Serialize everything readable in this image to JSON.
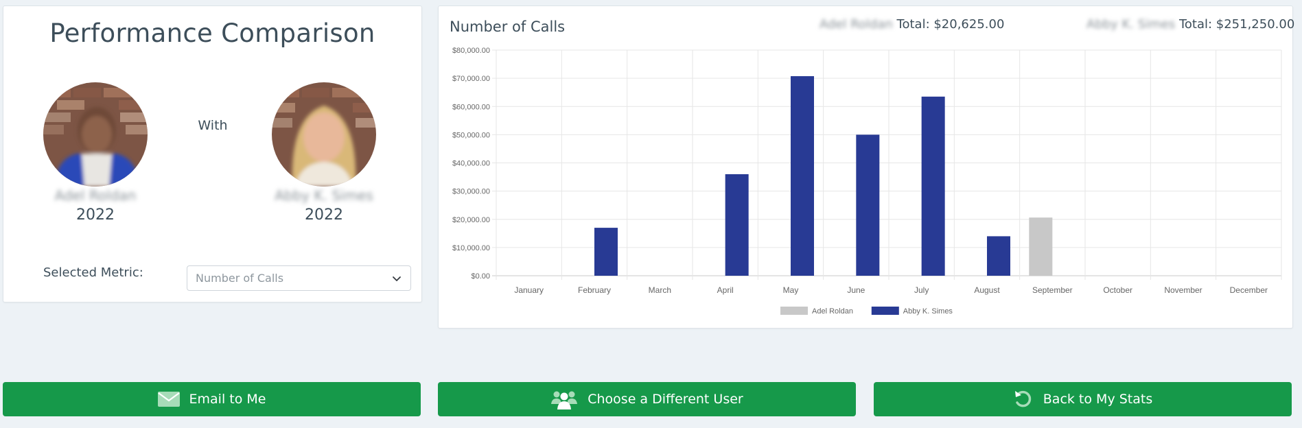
{
  "comparison": {
    "title": "Performance Comparison",
    "with_label": "With",
    "left_user": {
      "name": "Adel Roldan",
      "year": "2022"
    },
    "right_user": {
      "name": "Abby K. Simes",
      "year": "2022"
    },
    "metric_label": "Selected Metric:",
    "metric_value": "Number of Calls"
  },
  "chart_header": {
    "title": "Number of Calls",
    "left_total": {
      "name": "Adel Roldan",
      "text": "Total: $20,625.00"
    },
    "right_total": {
      "name": "Abby K. Simes",
      "text": "Total: $251,250.00"
    }
  },
  "chart_data": {
    "type": "bar",
    "title": "Number of Calls",
    "categories": [
      "January",
      "February",
      "March",
      "April",
      "May",
      "June",
      "July",
      "August",
      "September",
      "October",
      "November",
      "December"
    ],
    "y_ticks": [
      "$0.00",
      "$10,000.00",
      "$20,000.00",
      "$30,000.00",
      "$40,000.00",
      "$50,000.00",
      "$60,000.00",
      "$70,000.00",
      "$80,000.00"
    ],
    "ylim": [
      0,
      80000
    ],
    "grid": true,
    "legend_placement": "bottom-center",
    "series": [
      {
        "name": "Adel Roldan",
        "color": "#c8c8c8",
        "values": [
          0,
          0,
          0,
          0,
          0,
          0,
          0,
          0,
          20625,
          0,
          0,
          0
        ]
      },
      {
        "name": "Abby K. Simes",
        "color": "#283a94",
        "values": [
          0,
          17000,
          0,
          36000,
          70750,
          50000,
          63500,
          14000,
          0,
          0,
          0,
          0
        ]
      }
    ]
  },
  "actions": {
    "email": {
      "label": "Email to Me",
      "icon": "envelope-icon"
    },
    "choose_user": {
      "label": "Choose a Different User",
      "icon": "users-icon"
    },
    "back": {
      "label": "Back to My Stats",
      "icon": "undo-icon"
    }
  },
  "colors": {
    "button_green": "#16994a",
    "bar_primary": "#283a94",
    "bar_secondary": "#c8c8c8",
    "background": "#edf2f6"
  }
}
